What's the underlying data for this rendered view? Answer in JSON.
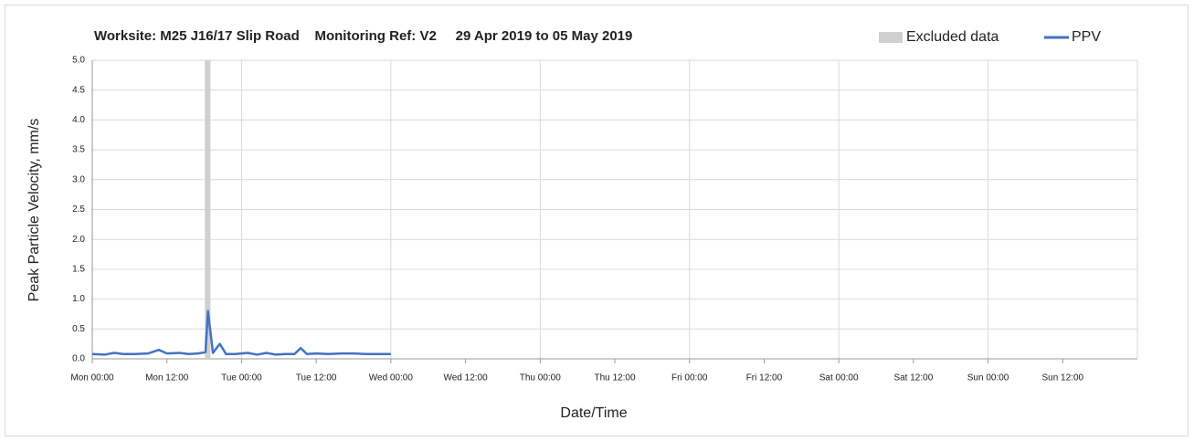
{
  "chart_data": {
    "type": "line",
    "title": "Worksite: M25 J16/17 Slip Road    Monitoring Ref: V2     29 Apr 2019 to 05 May 2019",
    "xlabel": "Date/Time",
    "ylabel": "Peak Particle Velocity, mm/s",
    "legend": "top-right",
    "grid": true,
    "xlim": [
      0,
      168
    ],
    "xticks": [
      {
        "value": 0,
        "label": "Mon 00:00"
      },
      {
        "value": 12,
        "label": "Mon 12:00"
      },
      {
        "value": 24,
        "label": "Tue 00:00"
      },
      {
        "value": 36,
        "label": "Tue 12:00"
      },
      {
        "value": 48,
        "label": "Wed 00:00"
      },
      {
        "value": 60,
        "label": "Wed 12:00"
      },
      {
        "value": 72,
        "label": "Thu 00:00"
      },
      {
        "value": 84,
        "label": "Thu 12:00"
      },
      {
        "value": 96,
        "label": "Fri 00:00"
      },
      {
        "value": 108,
        "label": "Fri 12:00"
      },
      {
        "value": 120,
        "label": "Sat 00:00"
      },
      {
        "value": 132,
        "label": "Sat 12:00"
      },
      {
        "value": 144,
        "label": "Sun 00:00"
      },
      {
        "value": 156,
        "label": "Sun 12:00"
      }
    ],
    "ylim": [
      0,
      5
    ],
    "yticks": [
      {
        "value": 0,
        "label": "0.0"
      },
      {
        "value": 0.5,
        "label": "0.5"
      },
      {
        "value": 1,
        "label": "1.0"
      },
      {
        "value": 1.5,
        "label": "1.5"
      },
      {
        "value": 2,
        "label": "2.0"
      },
      {
        "value": 2.5,
        "label": "2.5"
      },
      {
        "value": 3,
        "label": "3.0"
      },
      {
        "value": 3.5,
        "label": "3.5"
      },
      {
        "value": 4,
        "label": "4.0"
      },
      {
        "value": 4.5,
        "label": "4.5"
      },
      {
        "value": 5,
        "label": "5.0"
      }
    ],
    "bands": [
      {
        "name": "Excluded data",
        "color": "#d0d0d0",
        "x": [
          18.1,
          19.0
        ]
      }
    ],
    "series": [
      {
        "name": "PPV",
        "color": "#4472c4",
        "x": [
          0,
          2,
          3.5,
          5,
          7,
          9,
          10.7,
          12,
          14,
          15.5,
          17,
          18.2,
          18.6,
          19.4,
          20.5,
          21.5,
          23,
          25,
          26.5,
          28,
          29.5,
          31,
          32.5,
          33.5,
          34.5,
          36,
          38,
          40,
          42,
          44,
          46,
          48
        ],
        "values": [
          0.08,
          0.07,
          0.1,
          0.08,
          0.08,
          0.09,
          0.15,
          0.09,
          0.1,
          0.08,
          0.09,
          0.11,
          0.8,
          0.1,
          0.25,
          0.08,
          0.08,
          0.1,
          0.07,
          0.1,
          0.07,
          0.08,
          0.08,
          0.18,
          0.08,
          0.09,
          0.08,
          0.09,
          0.09,
          0.08,
          0.08,
          0.08
        ]
      }
    ]
  }
}
